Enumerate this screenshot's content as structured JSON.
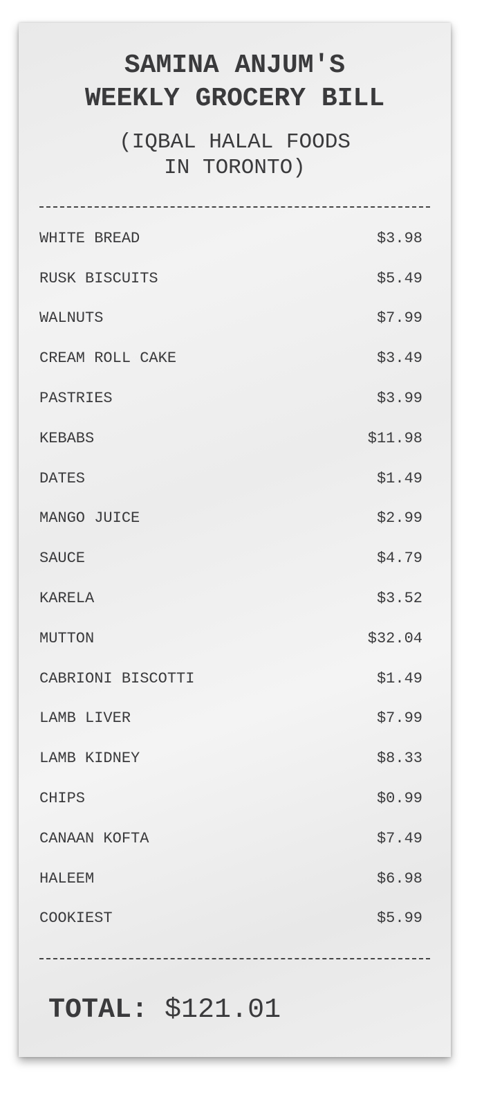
{
  "receipt": {
    "title_line1": "SAMINA ANJUM'S",
    "title_line2": "WEEKLY GROCERY BILL",
    "subtitle_line1": "(IQBAL HALAL FOODS",
    "subtitle_line2": "IN TORONTO)",
    "items": [
      {
        "name": "WHITE BREAD",
        "price": "$3.98"
      },
      {
        "name": "RUSK BISCUITS",
        "price": "$5.49"
      },
      {
        "name": "WALNUTS",
        "price": "$7.99"
      },
      {
        "name": "CREAM ROLL CAKE",
        "price": "$3.49"
      },
      {
        "name": "PASTRIES",
        "price": "$3.99"
      },
      {
        "name": "KEBABS",
        "price": "$11.98"
      },
      {
        "name": "DATES",
        "price": "$1.49"
      },
      {
        "name": "MANGO JUICE",
        "price": "$2.99"
      },
      {
        "name": "SAUCE",
        "price": "$4.79"
      },
      {
        "name": "KARELA",
        "price": "$3.52"
      },
      {
        "name": "MUTTON",
        "price": "$32.04"
      },
      {
        "name": "CABRIONI BISCOTTI",
        "price": "$1.49"
      },
      {
        "name": "LAMB LIVER",
        "price": "$7.99"
      },
      {
        "name": "LAMB KIDNEY",
        "price": "$8.33"
      },
      {
        "name": "CHIPS",
        "price": "$0.99"
      },
      {
        "name": "CANAAN KOFTA",
        "price": "$7.49"
      },
      {
        "name": "HALEEM",
        "price": "$6.98"
      },
      {
        "name": "COOKIEST",
        "price": "$5.99"
      }
    ],
    "total_label": "TOTAL:",
    "total_value": "$121.01"
  }
}
